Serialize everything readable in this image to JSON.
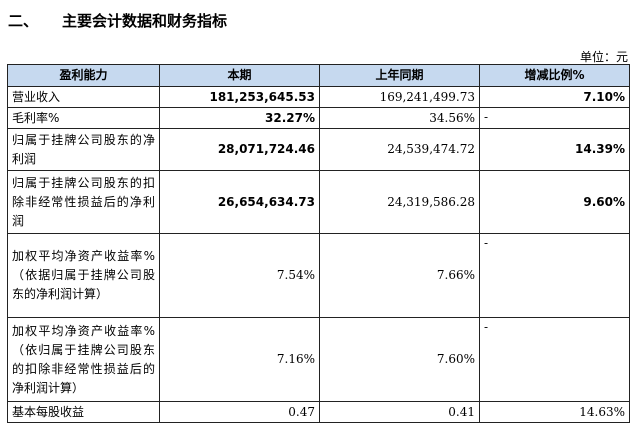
{
  "section": {
    "number": "二、",
    "title": "主要会计数据和财务指标"
  },
  "unit_label": "单位：元",
  "table": {
    "headers": [
      "盈利能力",
      "本期",
      "上年同期",
      "增减比例%"
    ],
    "rows": [
      {
        "label": "营业收入",
        "current": "181,253,645.53",
        "previous": "169,241,499.73",
        "change": "7.10%"
      },
      {
        "label": "毛利率%",
        "current": "32.27%",
        "previous": "34.56%",
        "change": "-"
      },
      {
        "label": "归属于挂牌公司股东的净利润",
        "current": "28,071,724.46",
        "previous": "24,539,474.72",
        "change": "14.39%"
      },
      {
        "label": "归属于挂牌公司股东的扣除非经常性损益后的净利润",
        "current": "26,654,634.73",
        "previous": "24,319,586.28",
        "change": "9.60%"
      },
      {
        "label": "加权平均净资产收益率%（依据归属于挂牌公司股东的净利润计算）",
        "current": "7.54%",
        "previous": "7.66%",
        "change": "-"
      },
      {
        "label": "加权平均净资产收益率%（依归属于挂牌公司股东的扣除非经常性损益后的净利润计算）",
        "current": "7.16%",
        "previous": "7.60%",
        "change": "-"
      },
      {
        "label": "基本每股收益",
        "current": "0.47",
        "previous": "0.41",
        "change": "14.63%"
      }
    ]
  }
}
